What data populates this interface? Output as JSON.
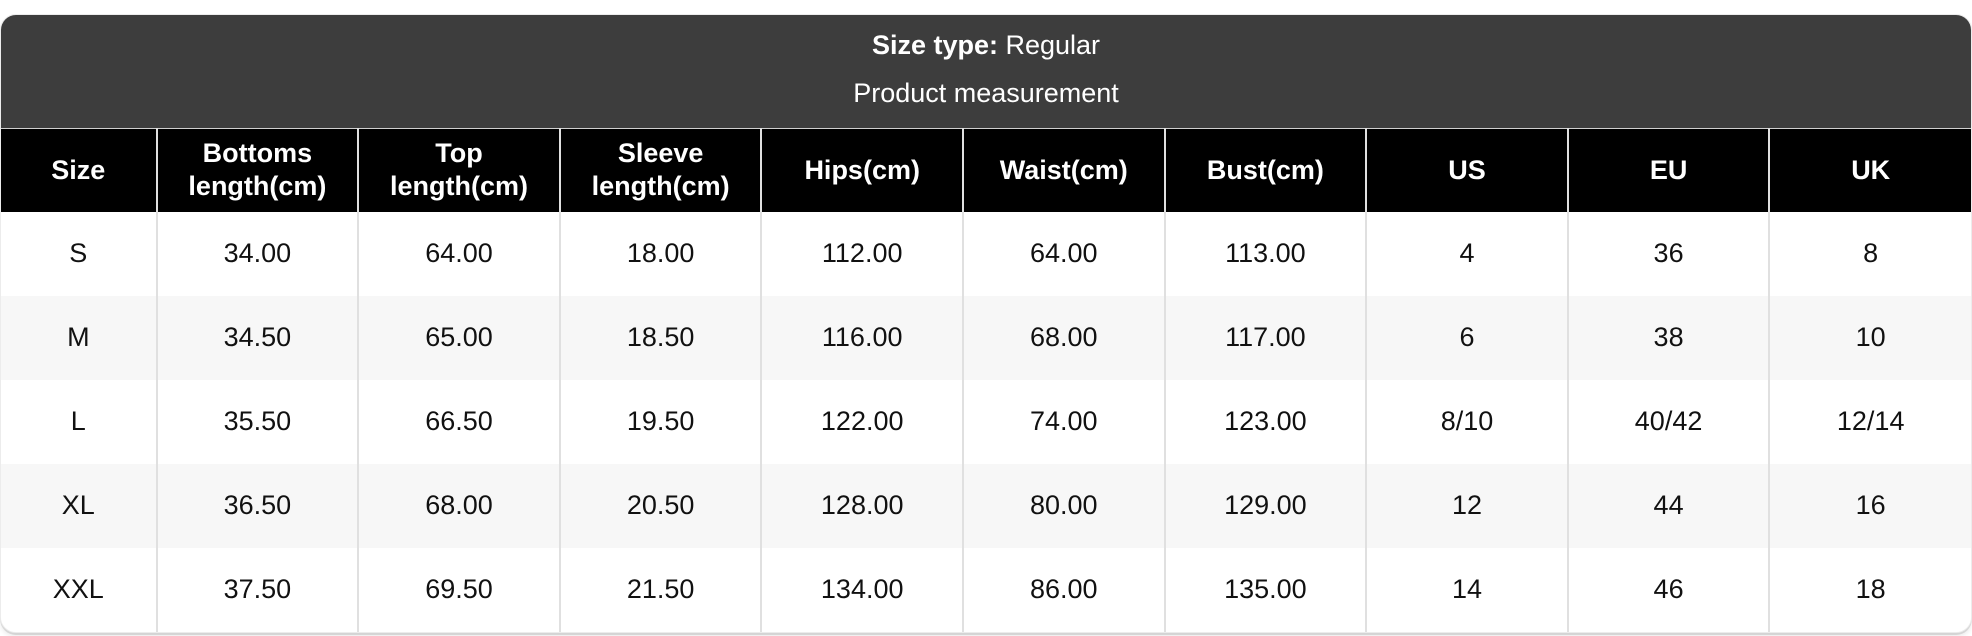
{
  "banner": {
    "size_type_label": "Size type:",
    "size_type_value": "Regular",
    "subtitle": "Product measurement"
  },
  "table": {
    "columns": [
      "Size",
      "Bottoms length(cm)",
      "Top length(cm)",
      "Sleeve length(cm)",
      "Hips(cm)",
      "Waist(cm)",
      "Bust(cm)",
      "US",
      "EU",
      "UK"
    ],
    "rows": [
      [
        "S",
        "34.00",
        "64.00",
        "18.00",
        "112.00",
        "64.00",
        "113.00",
        "4",
        "36",
        "8"
      ],
      [
        "M",
        "34.50",
        "65.00",
        "18.50",
        "116.00",
        "68.00",
        "117.00",
        "6",
        "38",
        "10"
      ],
      [
        "L",
        "35.50",
        "66.50",
        "19.50",
        "122.00",
        "74.00",
        "123.00",
        "8/10",
        "40/42",
        "12/14"
      ],
      [
        "XL",
        "36.50",
        "68.00",
        "20.50",
        "128.00",
        "80.00",
        "129.00",
        "12",
        "44",
        "16"
      ],
      [
        "XXL",
        "37.50",
        "69.50",
        "21.50",
        "134.00",
        "86.00",
        "135.00",
        "14",
        "46",
        "18"
      ]
    ]
  },
  "colors": {
    "header_bg": "#3d3d3d",
    "column_header_bg": "#000000",
    "row_alt_bg": "#f7f7f7",
    "border": "#e0e0e0",
    "text_light": "#ffffff",
    "text_dark": "#111111"
  }
}
